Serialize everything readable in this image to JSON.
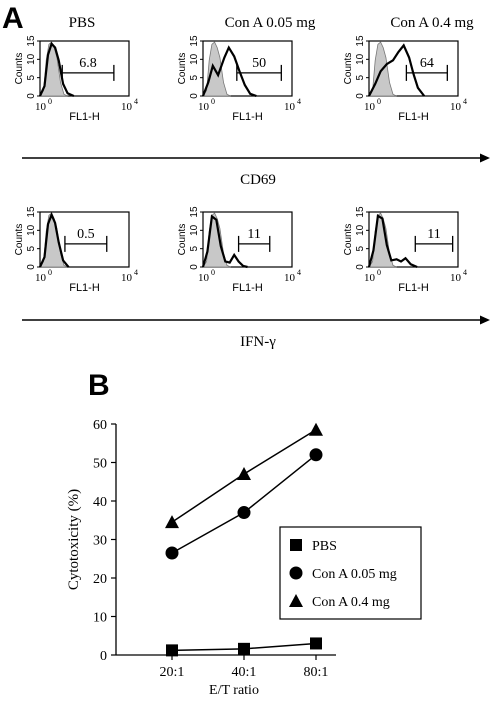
{
  "panel_a": {
    "label": "A",
    "column_titles": [
      "PBS",
      "Con A 0.05 mg",
      "Con A 0.4 mg"
    ],
    "rows": [
      {
        "marker": "CD69",
        "percentages": [
          "6.8",
          "50",
          "64"
        ]
      },
      {
        "marker": "IFN-γ",
        "percentages": [
          "0.5",
          "11",
          "11"
        ]
      }
    ],
    "histogram_axis": {
      "ylabel": "Counts",
      "xlabel": "FL1-H",
      "y_ticks": [
        "0",
        "5",
        "10",
        "15"
      ],
      "x_tick_min_base": "10",
      "x_tick_min_exp": "0",
      "x_tick_max_base": "10",
      "x_tick_max_exp": "4"
    }
  },
  "panel_b": {
    "label": "B"
  },
  "chart_data": {
    "type": "line",
    "categories": [
      "20:1",
      "40:1",
      "80:1"
    ],
    "xlabel": "E/T ratio",
    "ylabel": "Cytotoxicity (%)",
    "ylim": [
      0,
      60
    ],
    "yticks": [
      0,
      10,
      20,
      30,
      40,
      50,
      60
    ],
    "grid": false,
    "legend_position": "lower-right",
    "series": [
      {
        "name": "PBS",
        "marker": "square",
        "values": [
          1.2,
          1.6,
          3.0
        ]
      },
      {
        "name": "Con A 0.05 mg",
        "marker": "circle",
        "values": [
          26.5,
          37,
          52
        ]
      },
      {
        "name": "Con A 0.4 mg",
        "marker": "triangle",
        "values": [
          34.5,
          47,
          58.5
        ]
      }
    ]
  }
}
